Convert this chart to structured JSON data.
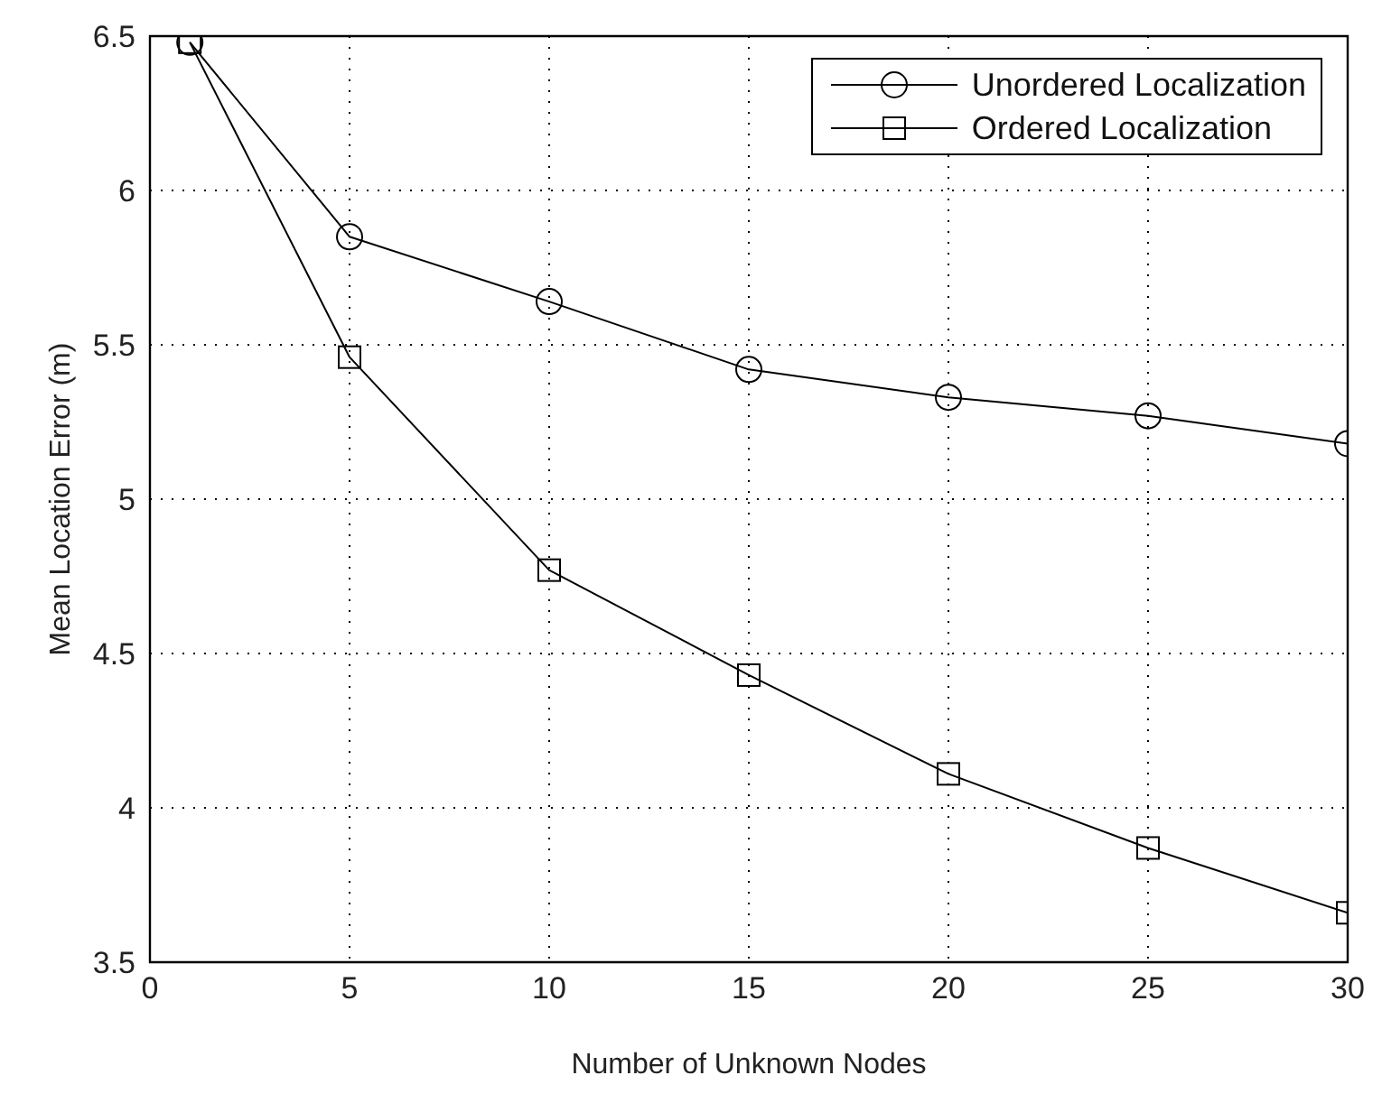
{
  "chart_data": {
    "type": "line",
    "xlabel": "Number of Unknown Nodes",
    "ylabel": "Mean Location Error (m)",
    "x": [
      1,
      5,
      10,
      15,
      20,
      25,
      30
    ],
    "series": [
      {
        "name": "Unordered Localization",
        "color": "#000000",
        "marker": "circle",
        "values": [
          6.48,
          5.85,
          5.64,
          5.42,
          5.33,
          5.27,
          5.18
        ]
      },
      {
        "name": "Ordered Localization",
        "color": "#000000",
        "marker": "square",
        "values": [
          6.48,
          5.46,
          4.77,
          4.43,
          4.11,
          3.87,
          3.66
        ]
      }
    ],
    "xlim": [
      0,
      30
    ],
    "xticks": [
      0,
      5,
      10,
      15,
      20,
      25,
      30
    ],
    "ylim": [
      3.5,
      6.5
    ],
    "yticks": [
      3.5,
      4,
      4.5,
      5,
      5.5,
      6,
      6.5
    ],
    "grid": true,
    "legend": "top right",
    "line_style": "solid"
  }
}
